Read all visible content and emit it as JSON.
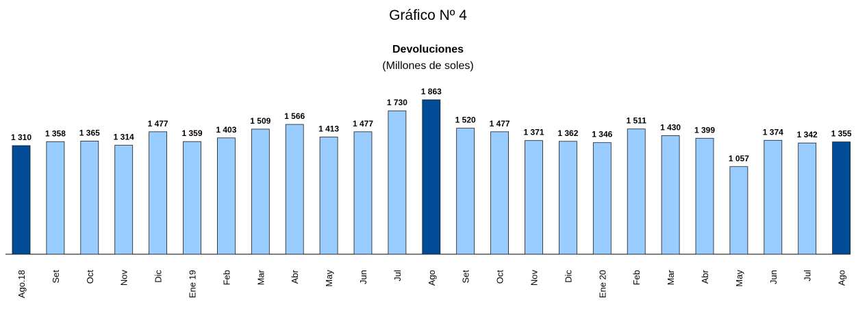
{
  "chart_data": {
    "type": "bar",
    "title": "Gráfico Nº 4",
    "subtitle": "Devoluciones",
    "unit_label": "(Millones de soles)",
    "categories": [
      "Ago.18",
      "Set",
      "Oct",
      "Nov",
      "Dic",
      "Ene 19",
      "Feb",
      "Mar",
      "Abr",
      "May",
      "Jun",
      "Jul",
      "Ago",
      "Set",
      "Oct",
      "Nov",
      "Dic",
      "Ene 20",
      "Feb",
      "Mar",
      "Abr",
      "May",
      "Jun",
      "Jul",
      "Ago"
    ],
    "values": [
      1310,
      1358,
      1365,
      1314,
      1477,
      1359,
      1403,
      1509,
      1566,
      1413,
      1477,
      1730,
      1863,
      1520,
      1477,
      1371,
      1362,
      1346,
      1511,
      1430,
      1399,
      1057,
      1374,
      1342,
      1355
    ],
    "value_labels": [
      "1 310",
      "1 358",
      "1 365",
      "1 314",
      "1 477",
      "1 359",
      "1 403",
      "1 509",
      "1 566",
      "1 413",
      "1 477",
      "1 730",
      "1 863",
      "1 520",
      "1 477",
      "1 371",
      "1 362",
      "1 346",
      "1 511",
      "1 430",
      "1 399",
      "1 057",
      "1 374",
      "1 342",
      "1 355"
    ],
    "colors": [
      "#004c97",
      "#99ccff",
      "#99ccff",
      "#99ccff",
      "#99ccff",
      "#99ccff",
      "#99ccff",
      "#99ccff",
      "#99ccff",
      "#99ccff",
      "#99ccff",
      "#99ccff",
      "#004c97",
      "#99ccff",
      "#99ccff",
      "#99ccff",
      "#99ccff",
      "#99ccff",
      "#99ccff",
      "#99ccff",
      "#99ccff",
      "#99ccff",
      "#99ccff",
      "#99ccff",
      "#004c97"
    ]
  }
}
